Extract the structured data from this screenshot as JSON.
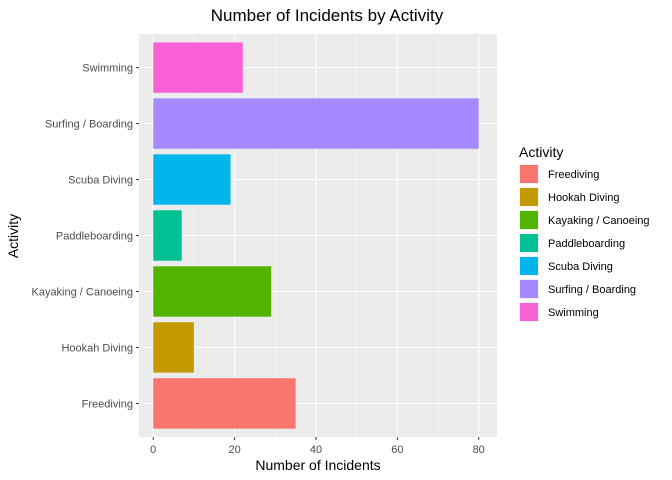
{
  "chart_data": {
    "type": "bar",
    "orientation": "horizontal",
    "title": "Number of Incidents by Activity",
    "xlabel": "Number of Incidents",
    "ylabel": "Activity",
    "categories": [
      "Freediving",
      "Hookah Diving",
      "Kayaking / Canoeing",
      "Paddleboarding",
      "Scuba Diving",
      "Surfing / Boarding",
      "Swimming"
    ],
    "values": [
      35,
      10,
      29,
      7,
      19,
      80,
      22
    ],
    "colors": [
      "#F8766D",
      "#C49A00",
      "#53B400",
      "#00C094",
      "#00B6EB",
      "#A58AFF",
      "#FB61D7"
    ],
    "xlim": [
      -3.5,
      84.5
    ],
    "xticks": [
      0,
      20,
      40,
      60,
      80
    ],
    "grid": true,
    "legend": {
      "title": "Activity",
      "position": "right",
      "entries": [
        "Freediving",
        "Hookah Diving",
        "Kayaking / Canoeing",
        "Paddleboarding",
        "Scuba Diving",
        "Surfing / Boarding",
        "Swimming"
      ]
    }
  }
}
